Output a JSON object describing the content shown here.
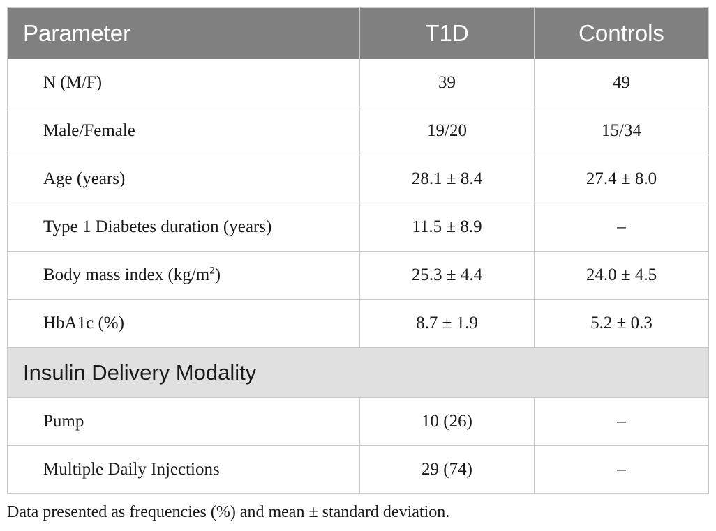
{
  "table": {
    "headers": [
      "Parameter",
      "T1D",
      "Controls"
    ],
    "rows": [
      {
        "label": "N (M/F)",
        "t1d": "39",
        "controls": "49"
      },
      {
        "label": "Male/Female",
        "t1d": "19/20",
        "controls": "15/34"
      },
      {
        "label": "Age (years)",
        "t1d": "28.1 ± 8.4",
        "controls": "27.4 ± 8.0"
      },
      {
        "label": "Type 1 Diabetes duration (years)",
        "t1d": "11.5 ± 8.9",
        "controls": "–"
      },
      {
        "label": "Body mass index (kg/m",
        "label_sup": "2",
        "label_suffix": ")",
        "t1d": "25.3 ± 4.4",
        "controls": "24.0 ± 4.5"
      },
      {
        "label": "HbA1c (%)",
        "t1d": "8.7 ± 1.9",
        "controls": "5.2 ± 0.3"
      }
    ],
    "section": {
      "title": "Insulin Delivery Modality",
      "rows": [
        {
          "label": "Pump",
          "t1d": "10 (26)",
          "controls": "–"
        },
        {
          "label": "Multiple Daily Injections",
          "t1d": "29 (74)",
          "controls": "–"
        }
      ]
    }
  },
  "footnote": "Data presented as frequencies (%) and mean ± standard deviation."
}
